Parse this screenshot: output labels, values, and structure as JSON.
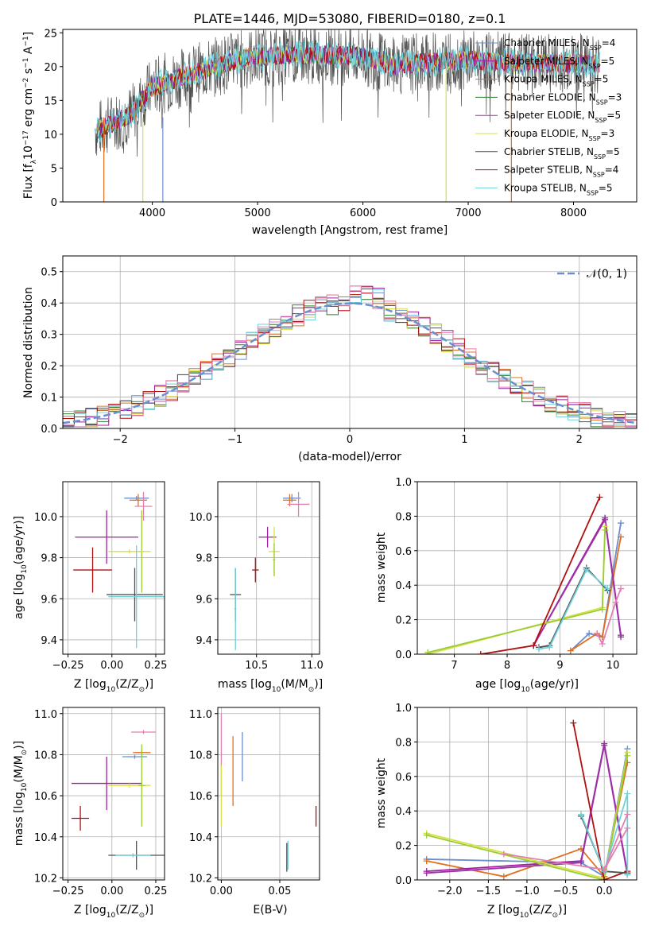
{
  "title": "PLATE=1446, MJD=53080, FIBERID=0180, z=0.1",
  "colors": {
    "c1": "#6a8fd0",
    "c2": "#a020a0",
    "c3": "#e07020",
    "c4": "#2f7f2f",
    "c5": "#9b30a8",
    "c6": "#d8e04a",
    "c7": "#505050",
    "c8": "#b01010",
    "c9": "#70d0d8",
    "c10": "#e080b0",
    "c11": "#9acd32",
    "gauss": "#6a8fd0"
  },
  "chart_data": [
    {
      "id": "spectrum",
      "type": "line",
      "xlabel": "wavelength [Angstrom, rest frame]",
      "ylabel_parts": [
        "Flux [f",
        "λ",
        "10",
        "−17",
        " erg cm",
        "−2",
        " s",
        "−1",
        " A",
        "−1",
        "]"
      ],
      "xlim": [
        3150,
        8600
      ],
      "ylim": [
        0,
        25.5
      ],
      "xticks": [
        4000,
        5000,
        6000,
        7000,
        8000
      ],
      "yticks": [
        0,
        5,
        10,
        15,
        20,
        25
      ],
      "legend_placement": "top-right",
      "series": [
        {
          "name": "Chabrier MILES, N",
          "sub": "SSP",
          "suffix": "=4",
          "color": "#6a8fd0"
        },
        {
          "name": "Salpeter MILES, N",
          "sub": "SSP",
          "suffix": "=5",
          "color": "#a020a0"
        },
        {
          "name": "Kroupa MILES, N",
          "sub": "SSP",
          "suffix": "=5",
          "color": "#e07020"
        },
        {
          "name": "Chabrier ELODIE, N",
          "sub": "SSP",
          "suffix": "=3",
          "color": "#2f7f2f"
        },
        {
          "name": "Salpeter ELODIE, N",
          "sub": "SSP",
          "suffix": "=5",
          "color": "#9b30a8"
        },
        {
          "name": "Kroupa ELODIE, N",
          "sub": "SSP",
          "suffix": "=3",
          "color": "#d8e04a"
        },
        {
          "name": "Chabrier STELIB, N",
          "sub": "SSP",
          "suffix": "=5",
          "color": "#505050"
        },
        {
          "name": "Salpeter STELIB, N",
          "sub": "SSP",
          "suffix": "=4",
          "color": "#b01010"
        },
        {
          "name": "Kroupa STELIB, N",
          "sub": "SSP",
          "suffix": "=5",
          "color": "#70d0d8"
        }
      ],
      "continuum": {
        "x": [
          3450,
          3600,
          3800,
          4000,
          4200,
          4500,
          4800,
          5000,
          5500,
          6000,
          6300,
          6500,
          7000,
          7500,
          8000,
          8300
        ],
        "y": [
          10.5,
          11.5,
          13,
          17,
          18,
          19.5,
          21,
          21.5,
          21.8,
          21.5,
          20,
          20.5,
          21,
          20.5,
          20.5,
          20.5
        ]
      }
    },
    {
      "id": "residuals",
      "type": "step",
      "xlabel": "(data-model)/error",
      "ylabel": "Normed distribution",
      "xlim": [
        -2.5,
        2.5
      ],
      "ylim": [
        0,
        0.55
      ],
      "xticks": [
        -2,
        -1,
        0,
        1,
        2
      ],
      "xticklabels": [
        "−2",
        "−1",
        "0",
        "1",
        "2"
      ],
      "yticks": [
        0,
        0.1,
        0.2,
        0.3,
        0.4,
        0.5
      ],
      "yticklabels": [
        "0.0",
        "0.1",
        "0.2",
        "0.3",
        "0.4",
        "0.5"
      ],
      "legend": "𝒩(0, 1)",
      "legend_placement": "top-right",
      "bin_width": 0.1
    },
    {
      "id": "age_vs_Z",
      "type": "scatter",
      "xlabel_parts": [
        "Z [log",
        "10",
        "(Z/Z",
        "⊙",
        ")]"
      ],
      "ylabel_parts": [
        "age  [log",
        "10",
        "(age/yr)]"
      ],
      "xlim": [
        -0.28,
        0.3
      ],
      "ylim": [
        9.33,
        10.17
      ],
      "xticks": [
        -0.25,
        0,
        0.25
      ],
      "xticklabels": [
        "−0.25",
        "0.00",
        "0.25"
      ],
      "yticks": [
        9.4,
        9.6,
        9.8,
        10.0
      ],
      "yticklabels": [
        "9.4",
        "9.6",
        "9.8",
        "10.0"
      ],
      "points": [
        {
          "x": 0.14,
          "y": 10.09,
          "xe": 0.07,
          "ye": 0.01,
          "c": "#6a8fd0"
        },
        {
          "x": 0.15,
          "y": 10.08,
          "xe": 0.05,
          "ye": 0.03,
          "c": "#e07020"
        },
        {
          "x": 0.18,
          "y": 10.05,
          "xe": 0.05,
          "ye": 0.07,
          "c": "#e080b0"
        },
        {
          "x": -0.03,
          "y": 9.9,
          "xe": 0.18,
          "ye": 0.13,
          "c": "#a020a0"
        },
        {
          "x": 0.17,
          "y": 9.83,
          "xe": 0.02,
          "ye": 0.2,
          "c": "#9acd32"
        },
        {
          "x": 0.1,
          "y": 9.83,
          "xe": 0.12,
          "ye": 0.01,
          "c": "#d8e04a"
        },
        {
          "x": -0.11,
          "y": 9.74,
          "xe": 0.11,
          "ye": 0.11,
          "c": "#b01010"
        },
        {
          "x": 0.13,
          "y": 9.62,
          "xe": 0.16,
          "ye": 0.13,
          "c": "#505050"
        },
        {
          "x": 0.14,
          "y": 9.61,
          "xe": 0.16,
          "ye": 0.25,
          "c": "#70d0d8"
        }
      ]
    },
    {
      "id": "age_vs_mass",
      "type": "scatter",
      "xlabel_parts": [
        "mass [log",
        "10",
        "(M/M",
        "⊙",
        ")]"
      ],
      "xlim": [
        10.15,
        11.07
      ],
      "ylim": [
        9.33,
        10.17
      ],
      "xticks": [
        10.5,
        11.0
      ],
      "xticklabels": [
        "10.5",
        "11.0"
      ],
      "yticks": [
        9.4,
        9.6,
        9.8,
        10.0
      ],
      "yticklabels": [
        "9.4",
        "9.6",
        "9.8",
        "10.0"
      ],
      "points": [
        {
          "x": 10.82,
          "y": 10.09,
          "xe": 0.08,
          "ye": 0.02,
          "c": "#6a8fd0"
        },
        {
          "x": 10.8,
          "y": 10.08,
          "xe": 0.06,
          "ye": 0.03,
          "c": "#e07020"
        },
        {
          "x": 10.88,
          "y": 10.06,
          "xe": 0.1,
          "ye": 0.06,
          "c": "#e080b0"
        },
        {
          "x": 10.6,
          "y": 9.9,
          "xe": 0.08,
          "ye": 0.05,
          "c": "#a020a0"
        },
        {
          "x": 10.66,
          "y": 9.83,
          "xe": 0.05,
          "ye": 0.12,
          "c": "#d8e04a"
        },
        {
          "x": 10.66,
          "y": 9.79,
          "xe": 0.01,
          "ye": 0.08,
          "c": "#9acd32"
        },
        {
          "x": 10.49,
          "y": 9.74,
          "xe": 0.03,
          "ye": 0.06,
          "c": "#b01010"
        },
        {
          "x": 10.31,
          "y": 9.62,
          "xe": 0.05,
          "ye": 0.13,
          "c": "#505050"
        },
        {
          "x": 10.31,
          "y": 9.55,
          "xe": 0.01,
          "ye": 0.2,
          "c": "#70d0d8"
        }
      ]
    },
    {
      "id": "weight_vs_age",
      "type": "line",
      "xlabel_parts": [
        "age  [log",
        "10",
        "(age/yr)]"
      ],
      "ylabel": "mass weight",
      "xlim": [
        6.3,
        10.45
      ],
      "ylim": [
        0,
        1.0
      ],
      "xticks": [
        7,
        8,
        9,
        10
      ],
      "xticklabels": [
        "7",
        "8",
        "9",
        "10"
      ],
      "yticks": [
        0,
        0.2,
        0.4,
        0.6,
        0.8,
        1.0
      ],
      "yticklabels": [
        "0.0",
        "0.2",
        "0.4",
        "0.6",
        "0.8",
        "1.0"
      ],
      "series": [
        {
          "c": "#6a8fd0",
          "x": [
            9.2,
            9.55,
            9.8,
            10.15
          ],
          "y": [
            0.02,
            0.12,
            0.1,
            0.76
          ]
        },
        {
          "c": "#e07020",
          "x": [
            9.2,
            9.7,
            9.8,
            10.15
          ],
          "y": [
            0.02,
            0.12,
            0.1,
            0.68
          ]
        },
        {
          "c": "#a020a0",
          "x": [
            8.5,
            9.85,
            10.15
          ],
          "y": [
            0.05,
            0.79,
            0.11
          ]
        },
        {
          "c": "#9b30a8",
          "x": [
            8.5,
            9.85,
            10.15
          ],
          "y": [
            0.05,
            0.78,
            0.1
          ]
        },
        {
          "c": "#d8e04a",
          "x": [
            6.5,
            9.8,
            9.85
          ],
          "y": [
            0.0,
            0.27,
            0.74
          ]
        },
        {
          "c": "#9acd32",
          "x": [
            6.5,
            9.8,
            9.85
          ],
          "y": [
            0.01,
            0.26,
            0.72
          ]
        },
        {
          "c": "#b01010",
          "x": [
            7.5,
            8.5,
            9.75
          ],
          "y": [
            0.0,
            0.05,
            0.91
          ]
        },
        {
          "c": "#505050",
          "x": [
            8.6,
            8.8,
            9.5,
            9.9
          ],
          "y": [
            0.04,
            0.05,
            0.5,
            0.37
          ]
        },
        {
          "c": "#70d0d8",
          "x": [
            8.6,
            8.8,
            9.5,
            9.9
          ],
          "y": [
            0.03,
            0.04,
            0.49,
            0.38
          ]
        },
        {
          "c": "#e080b0",
          "x": [
            9.7,
            9.8,
            10.05,
            10.15
          ],
          "y": [
            0.12,
            0.06,
            0.3,
            0.38
          ]
        }
      ]
    },
    {
      "id": "mass_vs_Z",
      "type": "scatter",
      "xlabel_parts": [
        "Z [log",
        "10",
        "(Z/Z",
        "⊙",
        ")]"
      ],
      "ylabel_parts": [
        "mass [log",
        "10",
        "(M/M",
        "⊙",
        ")]"
      ],
      "xlim": [
        -0.28,
        0.3
      ],
      "ylim": [
        10.19,
        11.03
      ],
      "xticks": [
        -0.25,
        0,
        0.25
      ],
      "xticklabels": [
        "−0.25",
        "0.00",
        "0.25"
      ],
      "yticks": [
        10.2,
        10.4,
        10.6,
        10.8,
        11.0
      ],
      "yticklabels": [
        "10.2",
        "10.4",
        "10.6",
        "10.8",
        "11.0"
      ],
      "points": [
        {
          "x": 0.18,
          "y": 10.91,
          "xe": 0.07,
          "ye": 0.01,
          "c": "#e080b0"
        },
        {
          "x": 0.17,
          "y": 10.81,
          "xe": 0.05,
          "ye": 0.01,
          "c": "#e07020"
        },
        {
          "x": 0.13,
          "y": 10.79,
          "xe": 0.07,
          "ye": 0.01,
          "c": "#6a8fd0"
        },
        {
          "x": -0.03,
          "y": 10.66,
          "xe": 0.2,
          "ye": 0.13,
          "c": "#a020a0"
        },
        {
          "x": 0.1,
          "y": 10.65,
          "xe": 0.12,
          "ye": 0.01,
          "c": "#d8e04a"
        },
        {
          "x": 0.17,
          "y": 10.65,
          "xe": 0.02,
          "ye": 0.2,
          "c": "#9acd32"
        },
        {
          "x": -0.18,
          "y": 10.49,
          "xe": 0.05,
          "ye": 0.06,
          "c": "#b01010"
        },
        {
          "x": 0.14,
          "y": 10.31,
          "xe": 0.16,
          "ye": 0.07,
          "c": "#505050"
        },
        {
          "x": 0.12,
          "y": 10.31,
          "xe": 0.1,
          "ye": 0.01,
          "c": "#70d0d8"
        }
      ]
    },
    {
      "id": "mass_vs_EBV",
      "type": "scatter",
      "xlabel": "E(B-V)",
      "xlim": [
        -0.003,
        0.084
      ],
      "ylim": [
        10.19,
        11.03
      ],
      "xticks": [
        0,
        0.05
      ],
      "xticklabels": [
        "0.00",
        "0.05"
      ],
      "yticks": [
        10.2,
        10.4,
        10.6,
        10.8,
        11.0
      ],
      "yticklabels": [
        "10.2",
        "10.4",
        "10.6",
        "10.8",
        "11.0"
      ],
      "points": [
        {
          "x": 0.0,
          "y": 10.8,
          "ye": 0.2,
          "c": "#e080b0"
        },
        {
          "x": 0.0,
          "y": 10.6,
          "ye": 0.15,
          "c": "#d8e04a"
        },
        {
          "x": 0.01,
          "y": 10.72,
          "ye": 0.17,
          "c": "#e07020"
        },
        {
          "x": 0.018,
          "y": 10.79,
          "ye": 0.12,
          "c": "#6a8fd0"
        },
        {
          "x": 0.056,
          "y": 10.3,
          "ye": 0.07,
          "c": "#505050"
        },
        {
          "x": 0.057,
          "y": 10.31,
          "ye": 0.07,
          "c": "#70d0d8"
        },
        {
          "x": 0.081,
          "y": 10.5,
          "ye": 0.05,
          "c": "#b01010"
        }
      ]
    },
    {
      "id": "weight_vs_Z",
      "type": "line",
      "xlabel_parts": [
        "Z [log",
        "10",
        "(Z/Z",
        "⊙",
        ")]"
      ],
      "ylabel": "mass weight",
      "xlim": [
        -2.42,
        0.42
      ],
      "ylim": [
        0,
        1.0
      ],
      "xticks": [
        -2.0,
        -1.5,
        -1.0,
        -0.5,
        0.0
      ],
      "xticklabels": [
        "−2.0",
        "−1.5",
        "−1.0",
        "−0.5",
        "0.0"
      ],
      "yticks": [
        0,
        0.2,
        0.4,
        0.6,
        0.8,
        1.0
      ],
      "yticklabels": [
        "0.0",
        "0.2",
        "0.4",
        "0.6",
        "0.8",
        "1.0"
      ],
      "series": [
        {
          "c": "#6a8fd0",
          "x": [
            -2.3,
            -0.3,
            0.0,
            0.3
          ],
          "y": [
            0.12,
            0.1,
            0.02,
            0.76
          ]
        },
        {
          "c": "#e07020",
          "x": [
            -2.3,
            -1.3,
            -0.3,
            0.0,
            0.3
          ],
          "y": [
            0.11,
            0.02,
            0.18,
            0.02,
            0.68
          ]
        },
        {
          "c": "#a020a0",
          "x": [
            -2.3,
            -0.3,
            0.0,
            0.3
          ],
          "y": [
            0.05,
            0.11,
            0.79,
            0.04
          ]
        },
        {
          "c": "#9b30a8",
          "x": [
            -2.3,
            -0.3,
            0.0,
            0.3
          ],
          "y": [
            0.04,
            0.1,
            0.78,
            0.03
          ]
        },
        {
          "c": "#d8e04a",
          "x": [
            -2.3,
            0.0,
            0.3
          ],
          "y": [
            0.27,
            0.01,
            0.74
          ]
        },
        {
          "c": "#9acd32",
          "x": [
            -2.3,
            0.0,
            0.3
          ],
          "y": [
            0.26,
            0.0,
            0.72
          ]
        },
        {
          "c": "#b01010",
          "x": [
            -0.4,
            0.0,
            0.3
          ],
          "y": [
            0.91,
            0.0,
            0.05
          ]
        },
        {
          "c": "#505050",
          "x": [
            -0.3,
            0.0,
            0.3
          ],
          "y": [
            0.37,
            0.05,
            0.04
          ]
        },
        {
          "c": "#70d0d8",
          "x": [
            -0.3,
            0.0,
            0.3,
            0.3
          ],
          "y": [
            0.38,
            0.05,
            0.5,
            0.03
          ]
        },
        {
          "c": "#e080b0",
          "x": [
            -1.3,
            0.0,
            0.3
          ],
          "y": [
            0.15,
            0.06,
            0.38
          ]
        },
        {
          "c": "#e080b0",
          "x": [
            0.0,
            0.3
          ],
          "y": [
            0.06,
            0.3
          ]
        }
      ]
    }
  ]
}
